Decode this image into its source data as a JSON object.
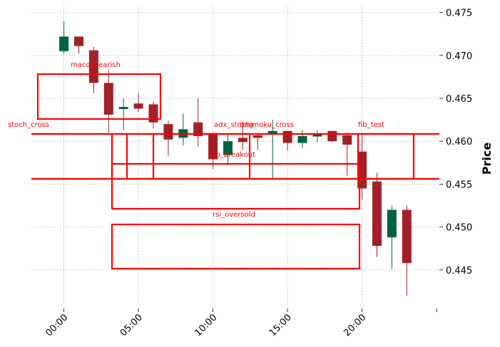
{
  "chart_data": {
    "type": "candlestick",
    "title": "",
    "xlabel": "",
    "ylabel": "Price",
    "ylim": [
      0.4405,
      0.4758
    ],
    "x_tick_labels": [
      "00:00",
      "05:00",
      "10:00",
      "15:00",
      "20:00"
    ],
    "x_tick_hours": [
      0,
      5,
      10,
      15,
      20
    ],
    "y_tick_labels": [
      "0.445",
      "0.450",
      "0.455",
      "0.460",
      "0.465",
      "0.470",
      "0.475"
    ],
    "y_ticks": [
      0.445,
      0.45,
      0.455,
      0.46,
      0.465,
      0.47,
      0.475
    ],
    "grid": true,
    "colors": {
      "up": "#006340",
      "down": "#a02128",
      "annotation": "#ff0000",
      "grid": "#b0b0b0"
    },
    "candles": [
      {
        "t": "00:00",
        "open": 0.4705,
        "high": 0.474,
        "low": 0.4702,
        "close": 0.4722
      },
      {
        "t": "01:00",
        "open": 0.4722,
        "high": 0.4722,
        "low": 0.4702,
        "close": 0.4711
      },
      {
        "t": "02:00",
        "open": 0.4706,
        "high": 0.471,
        "low": 0.4656,
        "close": 0.4668
      },
      {
        "t": "03:00",
        "open": 0.4668,
        "high": 0.4683,
        "low": 0.461,
        "close": 0.4631
      },
      {
        "t": "04:00",
        "open": 0.4638,
        "high": 0.465,
        "low": 0.4613,
        "close": 0.464
      },
      {
        "t": "05:00",
        "open": 0.4644,
        "high": 0.4656,
        "low": 0.4634,
        "close": 0.4638
      },
      {
        "t": "06:00",
        "open": 0.4643,
        "high": 0.4646,
        "low": 0.4615,
        "close": 0.4622
      },
      {
        "t": "07:00",
        "open": 0.462,
        "high": 0.4624,
        "low": 0.4583,
        "close": 0.4602
      },
      {
        "t": "08:00",
        "open": 0.4604,
        "high": 0.4632,
        "low": 0.4595,
        "close": 0.4614
      },
      {
        "t": "09:00",
        "open": 0.4622,
        "high": 0.465,
        "low": 0.4594,
        "close": 0.4606
      },
      {
        "t": "10:00",
        "open": 0.4608,
        "high": 0.461,
        "low": 0.4568,
        "close": 0.4579
      },
      {
        "t": "11:00",
        "open": 0.4584,
        "high": 0.4609,
        "low": 0.4572,
        "close": 0.46
      },
      {
        "t": "12:00",
        "open": 0.4604,
        "high": 0.4623,
        "low": 0.459,
        "close": 0.4599
      },
      {
        "t": "13:00",
        "open": 0.4607,
        "high": 0.4609,
        "low": 0.459,
        "close": 0.4604
      },
      {
        "t": "14:00",
        "open": 0.4608,
        "high": 0.4625,
        "low": 0.4556,
        "close": 0.4612
      },
      {
        "t": "15:00",
        "open": 0.4612,
        "high": 0.4612,
        "low": 0.4589,
        "close": 0.4598
      },
      {
        "t": "16:00",
        "open": 0.4598,
        "high": 0.4613,
        "low": 0.4592,
        "close": 0.4606
      },
      {
        "t": "17:00",
        "open": 0.4606,
        "high": 0.4613,
        "low": 0.4599,
        "close": 0.4608
      },
      {
        "t": "18:00",
        "open": 0.4612,
        "high": 0.4612,
        "low": 0.4599,
        "close": 0.46
      },
      {
        "t": "19:00",
        "open": 0.4607,
        "high": 0.461,
        "low": 0.456,
        "close": 0.4596
      },
      {
        "t": "20:00",
        "open": 0.4588,
        "high": 0.4609,
        "low": 0.4532,
        "close": 0.4545
      },
      {
        "t": "21:00",
        "open": 0.4553,
        "high": 0.4563,
        "low": 0.4465,
        "close": 0.4478
      },
      {
        "t": "22:00",
        "open": 0.4488,
        "high": 0.4525,
        "low": 0.4451,
        "close": 0.452
      },
      {
        "t": "23:00",
        "open": 0.452,
        "high": 0.4525,
        "low": 0.442,
        "close": 0.4458
      }
    ],
    "annotations": [
      {
        "label": "macd_bearish"
      },
      {
        "label": "stoch_cross"
      },
      {
        "label": "adx_strong"
      },
      {
        "label": "ichimoku_cross"
      },
      {
        "label": "fib_test"
      },
      {
        "label": "bb_breakout"
      },
      {
        "label": "rsi_oversold"
      }
    ]
  }
}
